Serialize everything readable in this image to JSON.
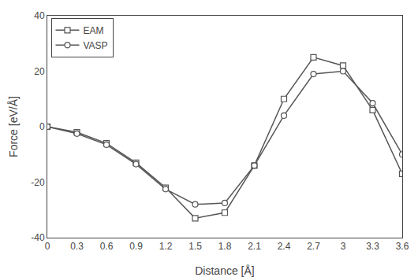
{
  "chart_data": {
    "type": "line",
    "x": [
      0.0,
      0.3,
      0.6,
      0.9,
      1.2,
      1.5,
      1.8,
      2.1,
      2.4,
      2.7,
      3.0,
      3.3,
      3.6
    ],
    "series": [
      {
        "name": "EAM",
        "color": "#555555",
        "marker": "square",
        "line_style": "solid",
        "values": [
          0.0,
          -2.0,
          -6.0,
          -13.0,
          -22.0,
          -33.0,
          -31.0,
          -14.0,
          10.0,
          25.0,
          22.0,
          6.0,
          -17.0
        ]
      },
      {
        "name": "VASP",
        "color": "#555555",
        "marker": "circle",
        "line_style": "solid",
        "values": [
          0.0,
          -2.5,
          -6.5,
          -13.5,
          -22.5,
          -28.0,
          -27.5,
          -14.0,
          4.0,
          19.0,
          20.0,
          8.5,
          -10.0
        ]
      }
    ],
    "xlabel": "Distance [Å]",
    "ylabel": "Force [eV/Å]",
    "xlim": [
      0.0,
      3.6
    ],
    "ylim": [
      -40,
      40
    ],
    "xticks": [
      0,
      0.3,
      0.6,
      0.9,
      1.2,
      1.5,
      1.8,
      2.1,
      2.4,
      2.7,
      3,
      3.3,
      3.6
    ],
    "yticks": [
      -40,
      -20,
      0,
      20,
      40
    ],
    "grid": false,
    "legend": "upper left"
  }
}
